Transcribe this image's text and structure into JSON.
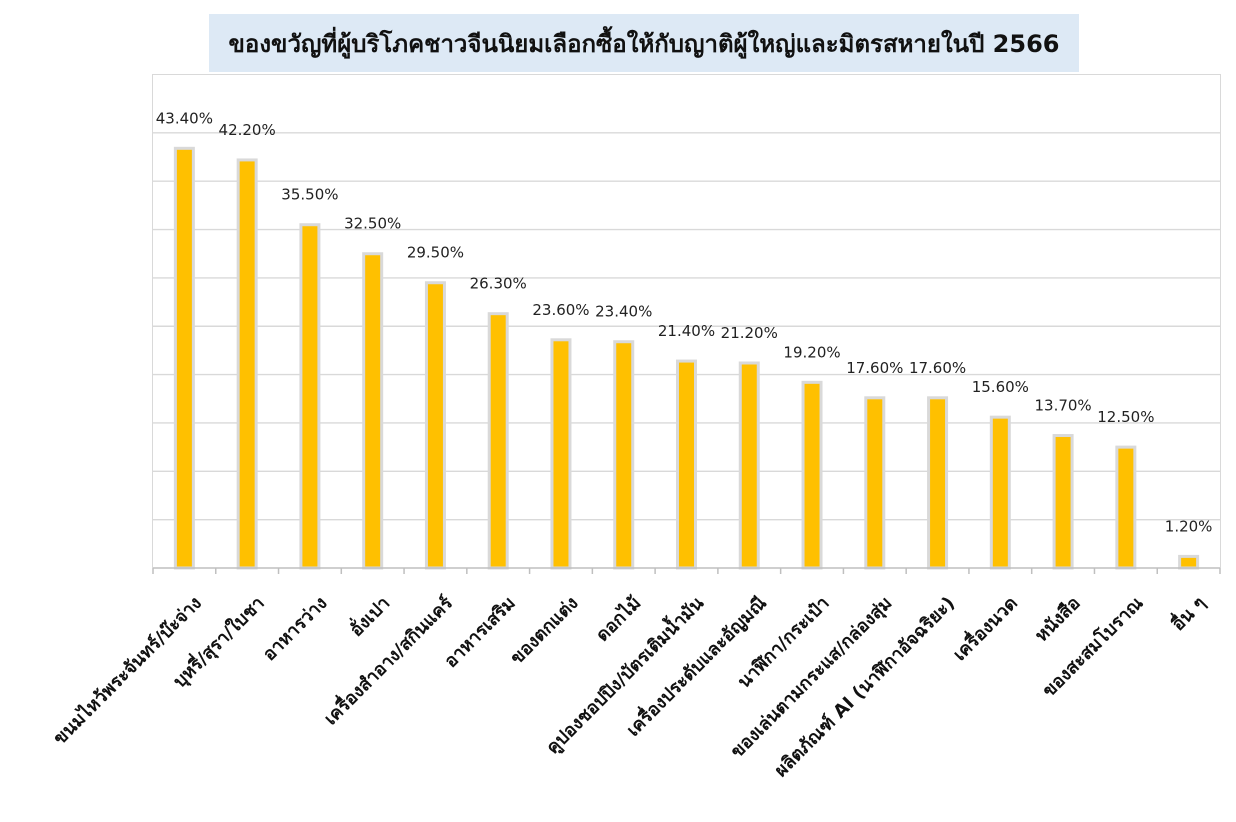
{
  "chart_data": {
    "type": "bar",
    "title": "ของขวัญที่ผู้บริโภคชาวจีนนิยมเลือกซื้อให้กับญาติผู้ใหญ่และมิตรสหายในปี 2566",
    "xlabel": "",
    "ylabel": "",
    "ylim": [
      0,
      45
    ],
    "grid": true,
    "categories": [
      "ขนมไหว้พระจันทร์/บ๊ะจ่าง",
      "บุหรี่/สุรา/ใบชา",
      "อาหารว่าง",
      "อั่งเปา",
      "เครื่องสำอาง/สกินแคร์",
      "อาหารเสริม",
      "ของตกแต่ง",
      "ดอกไม้",
      "คูปองชอปปิง/บัตรเติมน้ำมัน",
      "เครื่องประดับและอัญมณี",
      "นาฬิกา/กระเป๋า",
      "ของเล่นตามกระแส/กล่องสุ่ม",
      "ผลิตภัณฑ์ AI (นาฬิกาอัจฉริยะ)",
      "เครื่องนวด",
      "หนังสือ",
      "ของสะสมโบราณ",
      "อื่น ๆ"
    ],
    "values": [
      43.4,
      42.2,
      35.5,
      32.5,
      29.5,
      26.3,
      23.6,
      23.4,
      21.4,
      21.2,
      19.2,
      17.6,
      17.6,
      15.6,
      13.7,
      12.5,
      1.2
    ],
    "data_labels": [
      "43.40%",
      "42.20%",
      "35.50%",
      "32.50%",
      "29.50%",
      "26.30%",
      "23.60%",
      "23.40%",
      "21.40%",
      "21.20%",
      "19.20%",
      "17.60%",
      "17.60%",
      "15.60%",
      "13.70%",
      "12.50%",
      "1.20%"
    ],
    "colors": {
      "bar": "#ffc000",
      "bar_border": "#d9d9d9",
      "grid": "#d9d9d9",
      "title_bg": "#dde9f5"
    }
  }
}
